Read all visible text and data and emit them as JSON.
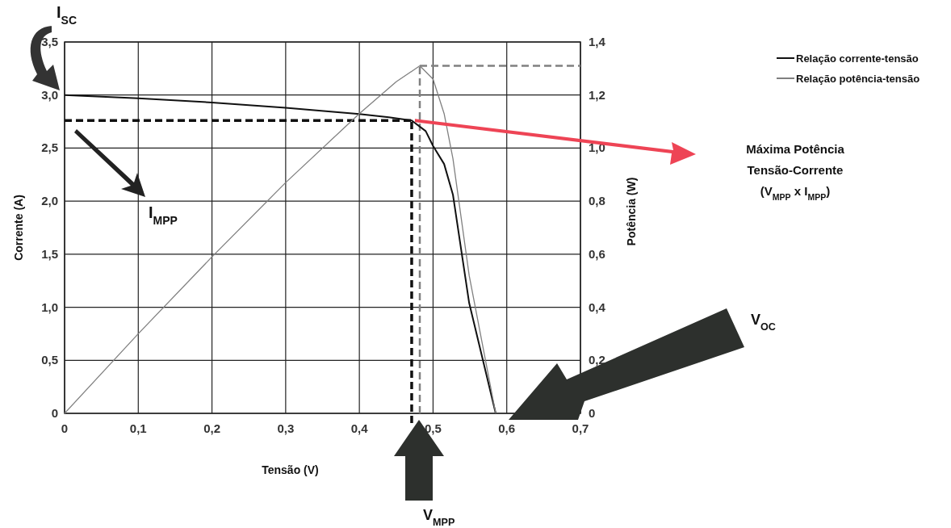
{
  "chart_data": {
    "type": "line",
    "xlabel": "Tensão (V)",
    "ylabel": "Corrente (A)",
    "y2label": "Potência (W)",
    "series": [
      {
        "name": "Relação corrente-tensão",
        "color": "#111111",
        "x": [
          0,
          0.1,
          0.2,
          0.3,
          0.4,
          0.44,
          0.471,
          0.49,
          0.5,
          0.515,
          0.527,
          0.549,
          0.585
        ],
        "values": [
          3.0,
          2.97,
          2.93,
          2.88,
          2.82,
          2.79,
          2.76,
          2.66,
          2.52,
          2.35,
          2.06,
          1.04,
          0
        ]
      },
      {
        "name": "Relação potência-tensão",
        "color": "#808080",
        "axis": "y2",
        "x": [
          0,
          0.1,
          0.2,
          0.3,
          0.4,
          0.45,
          0.482,
          0.5,
          0.515,
          0.527,
          0.549,
          0.585
        ],
        "values": [
          0,
          0.3,
          0.59,
          0.87,
          1.13,
          1.25,
          1.31,
          1.26,
          1.13,
          0.96,
          0.52,
          0
        ]
      }
    ],
    "xlim": [
      0,
      0.7
    ],
    "xticks": [
      0,
      {
        "value": 0.1,
        "label": "0,1"
      },
      {
        "value": 0.2,
        "label": "0,2"
      },
      {
        "value": 0.3,
        "label": "0,3"
      },
      {
        "value": 0.4,
        "label": "0,4"
      },
      {
        "value": 0.5,
        "label": "0,5"
      },
      {
        "value": 0.6,
        "label": "0,6"
      },
      {
        "value": 0.7,
        "label": "0,7"
      }
    ],
    "ylim": [
      0,
      3.5
    ],
    "yticks": [
      0,
      {
        "value": 0.5,
        "label": "0,5"
      },
      {
        "value": 1.0,
        "label": "1,0"
      },
      {
        "value": 1.5,
        "label": "1,5"
      },
      {
        "value": 2.0,
        "label": "2,0"
      },
      {
        "value": 2.5,
        "label": "2,5"
      },
      {
        "value": 3.0,
        "label": "3,0"
      },
      {
        "value": 3.5,
        "label": "3,5"
      }
    ],
    "y2lim": [
      0,
      1.4
    ],
    "y2ticks": [
      0,
      {
        "value": 0.2,
        "label": "0,2"
      },
      {
        "value": 0.4,
        "label": "0,4"
      },
      {
        "value": 0.6,
        "label": "0,6"
      },
      {
        "value": 0.8,
        "label": "0,8"
      },
      {
        "value": 1.0,
        "label": "1,0"
      },
      {
        "value": 1.2,
        "label": "1,2"
      },
      {
        "value": 1.4,
        "label": "1,4"
      }
    ],
    "grid": true,
    "legend": "top right",
    "marker": "none",
    "line_style": "solid",
    "ref_lines": [
      {
        "axis": "x",
        "value": 0.471,
        "color": "#111111",
        "line_style": "dashed"
      },
      {
        "axis": "y",
        "value": 2.76,
        "color": "#111111",
        "line_style": "dashed"
      },
      {
        "axis": "x",
        "value": 0.482,
        "color": "#808080",
        "line_style": "dashed"
      },
      {
        "axis": "y2",
        "value": 1.31,
        "color": "#808080",
        "line_style": "dashed"
      }
    ],
    "annotations": [
      "I$_{SC}$",
      "I$_{MPP}$",
      "Máxima Potência Tensão-Corrente (V$_{MPP}$ x I$_{MPP}$)",
      "V$_{OC}$",
      "V$_{MPP}$"
    ]
  }
}
